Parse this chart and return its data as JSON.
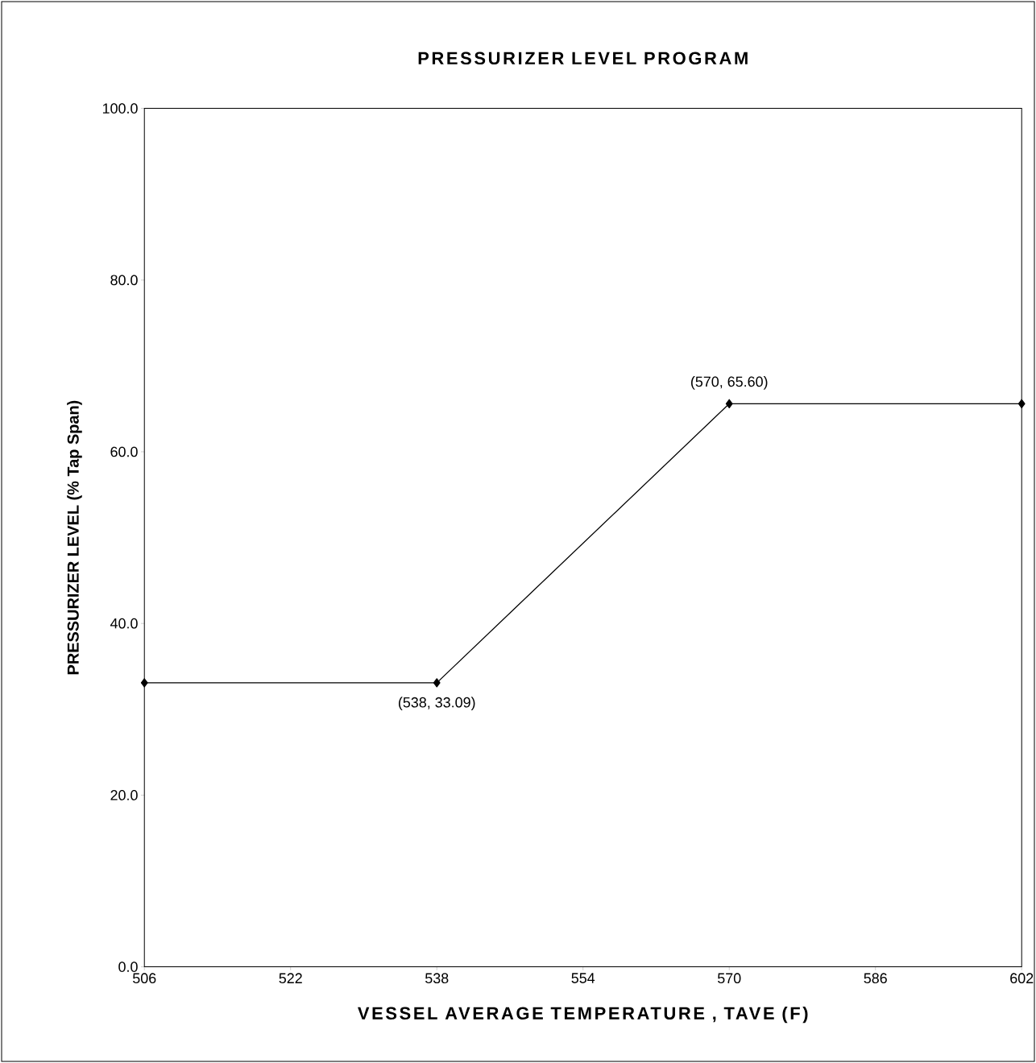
{
  "chart_data": {
    "type": "line",
    "title": "PRESSURIZER LEVEL PROGRAM",
    "xlabel": "VESSEL AVERAGE TEMPERATURE , TAVE (F)",
    "ylabel": "PRESSURIZER LEVEL (% Tap Span)",
    "x": [
      506,
      538,
      570,
      602
    ],
    "series": [
      {
        "color": "#000000",
        "values": [
          33.09,
          33.09,
          65.6,
          65.6
        ]
      }
    ],
    "xlim": [
      506,
      602
    ],
    "xticks": [
      506,
      522,
      538,
      554,
      570,
      586,
      602
    ],
    "ylim": [
      0,
      100
    ],
    "yticks": [
      {
        "value": 0,
        "label": "0.0"
      },
      {
        "value": 20,
        "label": "20.0"
      },
      {
        "value": 40,
        "label": "40.0"
      },
      {
        "value": 60,
        "label": "60.0"
      },
      {
        "value": 80,
        "label": "80.0"
      },
      {
        "value": 100,
        "label": "100.0"
      }
    ],
    "annotations": [
      {
        "text": "(538, 33.09)",
        "x": 538,
        "y": 33.09
      },
      {
        "text": "(570, 65.60)",
        "x": 570,
        "y": 65.6
      }
    ],
    "grid": false,
    "marker": "diamond",
    "line_style": "solid"
  }
}
